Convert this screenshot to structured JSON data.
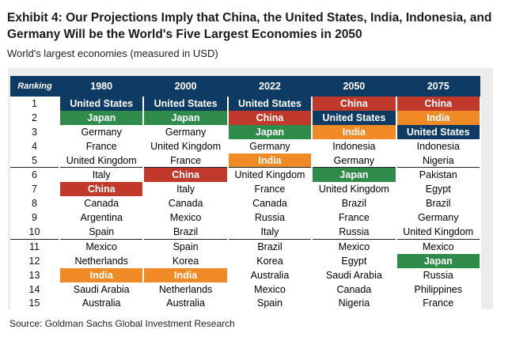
{
  "title": "Exhibit 4: Our Projections Imply that China, the United States, India, Indonesia, and Germany Will be the World's Five Largest Economies in 2050",
  "subtitle": "World's largest economies (measured in USD)",
  "source": "Source: Goldman Sachs Global Investment Research",
  "colors": {
    "header": "#0e3b63",
    "China": "#c0392b",
    "Japan": "#2e8b4a",
    "India": "#f08a24",
    "United States": "#0e3b63"
  },
  "chart_data": {
    "type": "table",
    "rank_header": "Ranking",
    "columns": [
      "1980",
      "2000",
      "2022",
      "2050",
      "2075"
    ],
    "rows": [
      {
        "rank": "1",
        "cells": [
          "United States",
          "United States",
          "United States",
          "China",
          "China"
        ]
      },
      {
        "rank": "2",
        "cells": [
          "Japan",
          "Japan",
          "China",
          "United States",
          "India"
        ]
      },
      {
        "rank": "3",
        "cells": [
          "Germany",
          "Germany",
          "Japan",
          "India",
          "United States"
        ]
      },
      {
        "rank": "4",
        "cells": [
          "France",
          "United Kingdom",
          "Germany",
          "Indonesia",
          "Indonesia"
        ]
      },
      {
        "rank": "5",
        "cells": [
          "United Kingdom",
          "France",
          "India",
          "Germany",
          "Nigeria"
        ]
      },
      {
        "rank": "6",
        "cells": [
          "Italy",
          "China",
          "United Kingdom",
          "Japan",
          "Pakistan"
        ]
      },
      {
        "rank": "7",
        "cells": [
          "China",
          "Italy",
          "France",
          "United Kingdom",
          "Egypt"
        ]
      },
      {
        "rank": "8",
        "cells": [
          "Canada",
          "Canada",
          "Canada",
          "Brazil",
          "Brazil"
        ]
      },
      {
        "rank": "9",
        "cells": [
          "Argentina",
          "Mexico",
          "Russia",
          "France",
          "Germany"
        ]
      },
      {
        "rank": "10",
        "cells": [
          "Spain",
          "Brazil",
          "Italy",
          "Russia",
          "United Kingdom"
        ]
      },
      {
        "rank": "11",
        "cells": [
          "Mexico",
          "Spain",
          "Brazil",
          "Mexico",
          "Mexico"
        ]
      },
      {
        "rank": "12",
        "cells": [
          "Netherlands",
          "Korea",
          "Korea",
          "Egypt",
          "Japan"
        ]
      },
      {
        "rank": "13",
        "cells": [
          "India",
          "India",
          "Australia",
          "Saudi Arabia",
          "Russia"
        ]
      },
      {
        "rank": "14",
        "cells": [
          "Saudi Arabia",
          "Netherlands",
          "Mexico",
          "Canada",
          "Philippines"
        ]
      },
      {
        "rank": "15",
        "cells": [
          "Australia",
          "Australia",
          "Spain",
          "Nigeria",
          "France"
        ]
      }
    ],
    "highlights": [
      {
        "country": "United States",
        "style": "navy"
      },
      {
        "country": "China",
        "style": "red"
      },
      {
        "country": "Japan",
        "style": "green"
      },
      {
        "country": "India",
        "style": "orange"
      }
    ]
  }
}
